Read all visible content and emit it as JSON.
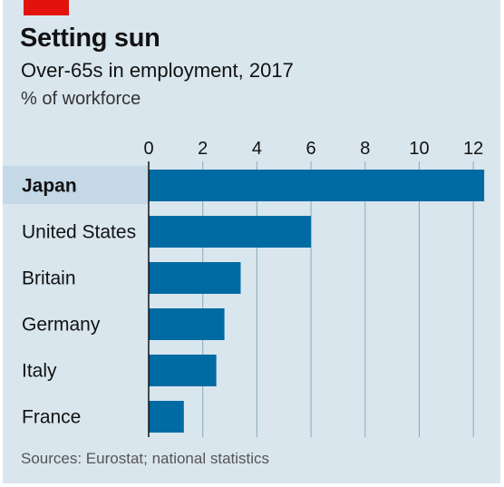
{
  "header": {
    "title": "Setting sun",
    "subtitle": "Over-65s in employment, 2017",
    "unit": "% of workforce"
  },
  "footer": {
    "source": "Sources: Eurostat; national statistics"
  },
  "colors": {
    "background": "#d9e6ee",
    "bar": "#006ba2",
    "highlight_row": "#c4d9e5",
    "gridline": "#8aa9bd",
    "axis": "#121212",
    "brand_tag": "#e3120b"
  },
  "chart_data": {
    "type": "bar",
    "orientation": "horizontal",
    "categories": [
      "Japan",
      "United States",
      "Britain",
      "Germany",
      "Italy",
      "France"
    ],
    "values": [
      12.4,
      6.0,
      3.4,
      2.8,
      2.5,
      1.3
    ],
    "highlight": "Japan",
    "xlim": [
      0,
      12.4
    ],
    "xticks": [
      0,
      2,
      4,
      6,
      8,
      10,
      12
    ],
    "tick_position": "top",
    "grid": true
  }
}
